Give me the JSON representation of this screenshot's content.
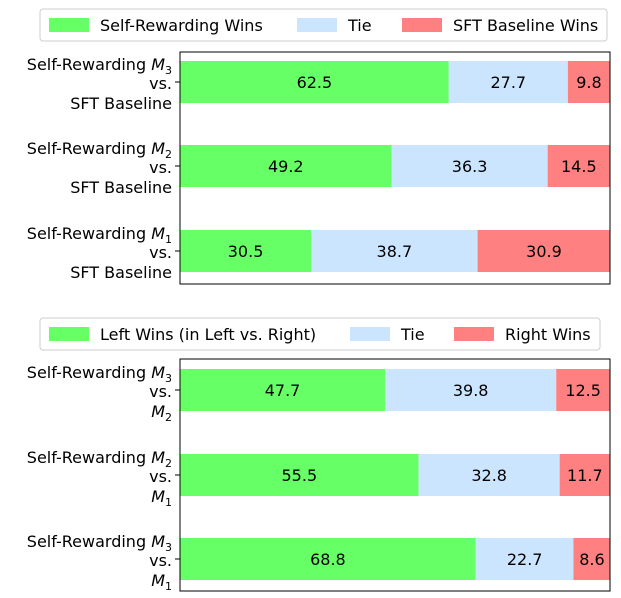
{
  "chart_data": [
    {
      "type": "bar",
      "orientation": "horizontal",
      "stacked": true,
      "legend_position": "top",
      "xlim": [
        0,
        100
      ],
      "categories": [
        [
          "Self-Rewarding M3",
          "vs.",
          "SFT Baseline"
        ],
        [
          "Self-Rewarding M2",
          "vs.",
          "SFT Baseline"
        ],
        [
          "Self-Rewarding M1",
          "vs.",
          "SFT Baseline"
        ]
      ],
      "category_labels": [
        {
          "line1_text": "Self-Rewarding ",
          "model": "M",
          "sub": "3",
          "line2": "vs.",
          "line3_text": "SFT Baseline",
          "line3_model": "",
          "line3_sub": ""
        },
        {
          "line1_text": "Self-Rewarding ",
          "model": "M",
          "sub": "2",
          "line2": "vs.",
          "line3_text": "SFT Baseline",
          "line3_model": "",
          "line3_sub": ""
        },
        {
          "line1_text": "Self-Rewarding ",
          "model": "M",
          "sub": "1",
          "line2": "vs.",
          "line3_text": "SFT Baseline",
          "line3_model": "",
          "line3_sub": ""
        }
      ],
      "series": [
        {
          "name": "Self-Rewarding Wins",
          "color": "#66ff66",
          "values": [
            62.5,
            49.2,
            30.5
          ]
        },
        {
          "name": "Tie",
          "color": "#cce5ff",
          "values": [
            27.7,
            36.3,
            38.7
          ]
        },
        {
          "name": "SFT Baseline Wins",
          "color": "#ff8080",
          "values": [
            9.8,
            14.5,
            30.9
          ]
        }
      ]
    },
    {
      "type": "bar",
      "orientation": "horizontal",
      "stacked": true,
      "legend_position": "top",
      "xlim": [
        0,
        100
      ],
      "categories": [
        [
          "Self-Rewarding M3",
          "vs.",
          "M2"
        ],
        [
          "Self-Rewarding M2",
          "vs.",
          "M1"
        ],
        [
          "Self-Rewarding M3",
          "vs.",
          "M1"
        ]
      ],
      "category_labels": [
        {
          "line1_text": "Self-Rewarding ",
          "model": "M",
          "sub": "3",
          "line2": "vs.",
          "line3_text": "",
          "line3_model": "M",
          "line3_sub": "2"
        },
        {
          "line1_text": "Self-Rewarding ",
          "model": "M",
          "sub": "2",
          "line2": "vs.",
          "line3_text": "",
          "line3_model": "M",
          "line3_sub": "1"
        },
        {
          "line1_text": "Self-Rewarding ",
          "model": "M",
          "sub": "3",
          "line2": "vs.",
          "line3_text": "",
          "line3_model": "M",
          "line3_sub": "1"
        }
      ],
      "series": [
        {
          "name": "Left Wins (in Left vs. Right)",
          "color": "#66ff66",
          "values": [
            47.7,
            55.5,
            68.8
          ]
        },
        {
          "name": "Tie",
          "color": "#cce5ff",
          "values": [
            39.8,
            32.8,
            22.7
          ]
        },
        {
          "name": "Right Wins",
          "color": "#ff8080",
          "values": [
            12.5,
            11.7,
            8.6
          ]
        }
      ]
    }
  ]
}
